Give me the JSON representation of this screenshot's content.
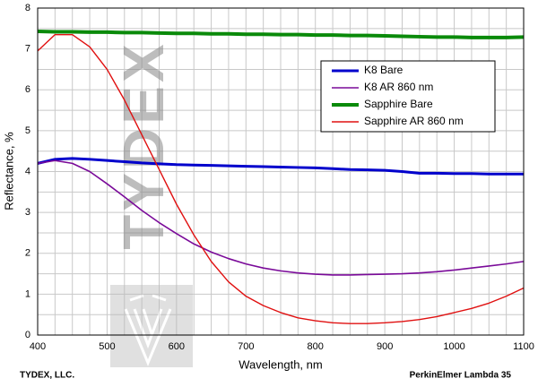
{
  "chart_data": {
    "type": "line",
    "x_label": "Wavelength, nm",
    "y_label": "Reflectance, %",
    "watermark": "TYDEX",
    "footer_left": "TYDEX, LLC.",
    "footer_right": "PerkinElmer Lambda 35",
    "x": [
      400,
      425,
      450,
      475,
      500,
      525,
      550,
      575,
      600,
      625,
      650,
      675,
      700,
      725,
      750,
      775,
      800,
      825,
      850,
      875,
      900,
      925,
      950,
      975,
      1000,
      1025,
      1050,
      1075,
      1100
    ],
    "series": [
      {
        "name": "K8 Bare",
        "color": "#0000cc",
        "width": 3,
        "values": [
          4.2,
          4.3,
          4.32,
          4.3,
          4.27,
          4.24,
          4.21,
          4.19,
          4.17,
          4.16,
          4.15,
          4.14,
          4.13,
          4.12,
          4.11,
          4.1,
          4.09,
          4.07,
          4.05,
          4.04,
          4.03,
          4.0,
          3.96,
          3.96,
          3.95,
          3.95,
          3.94,
          3.94,
          3.94
        ]
      },
      {
        "name": "K8 AR 860 nm",
        "color": "#7a0a99",
        "width": 1.6,
        "values": [
          4.2,
          4.27,
          4.2,
          4.0,
          3.7,
          3.38,
          3.05,
          2.75,
          2.48,
          2.23,
          2.03,
          1.87,
          1.74,
          1.64,
          1.57,
          1.52,
          1.49,
          1.47,
          1.47,
          1.48,
          1.49,
          1.5,
          1.52,
          1.55,
          1.59,
          1.64,
          1.69,
          1.74,
          1.8
        ]
      },
      {
        "name": "Sapphire Bare",
        "color": "#0a8a0a",
        "width": 4,
        "values": [
          7.43,
          7.42,
          7.42,
          7.41,
          7.41,
          7.4,
          7.4,
          7.39,
          7.38,
          7.38,
          7.37,
          7.37,
          7.36,
          7.36,
          7.35,
          7.35,
          7.34,
          7.34,
          7.33,
          7.33,
          7.32,
          7.31,
          7.3,
          7.29,
          7.29,
          7.28,
          7.28,
          7.28,
          7.29
        ]
      },
      {
        "name": "Sapphire AR 860 nm",
        "color": "#e01010",
        "width": 1.4,
        "values": [
          6.95,
          7.35,
          7.35,
          7.05,
          6.5,
          5.75,
          4.9,
          4.05,
          3.2,
          2.45,
          1.8,
          1.3,
          0.95,
          0.72,
          0.55,
          0.42,
          0.35,
          0.3,
          0.28,
          0.28,
          0.3,
          0.33,
          0.38,
          0.45,
          0.55,
          0.65,
          0.78,
          0.95,
          1.15
        ]
      }
    ],
    "xlim": [
      400,
      1100
    ],
    "ylim": [
      0,
      8
    ],
    "xticks": [
      400,
      500,
      600,
      700,
      800,
      900,
      1000,
      1100
    ],
    "yticks": [
      0,
      1,
      2,
      3,
      4,
      5,
      6,
      7,
      8
    ],
    "x_minor_grid": [
      425,
      450,
      475,
      525,
      550,
      575,
      625,
      650,
      675,
      725,
      750,
      775,
      825,
      850,
      875,
      925,
      950,
      975,
      1025,
      1050,
      1075
    ],
    "y_minor_grid": [
      0.5,
      1.5,
      2.5,
      3.5,
      4.5,
      5.5,
      6.5,
      7.5
    ],
    "grid": true,
    "legend": "upper right"
  }
}
